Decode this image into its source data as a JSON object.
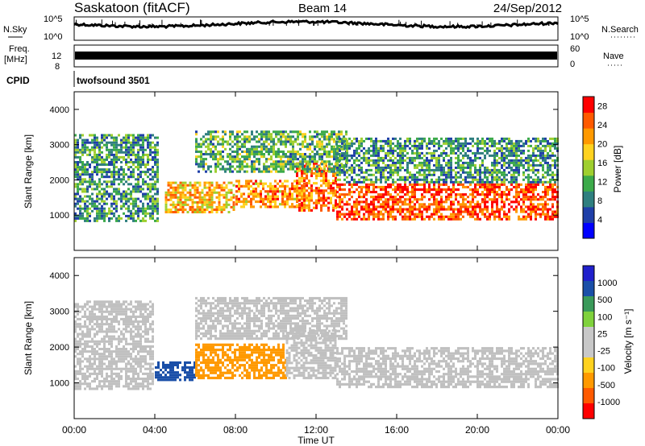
{
  "header": {
    "station": "Saskatoon (fitACF)",
    "beam": "Beam 14",
    "date": "24/Sep/2012"
  },
  "top_panels": {
    "nsky_label": "N.Sky",
    "nsearch_label": "N.Search",
    "nsky_ticks": [
      "10^5",
      "10^0"
    ],
    "nsearch_ticks": [
      "10^5",
      "10^0"
    ],
    "freq_label_1": "Freq.",
    "freq_label_2": "[MHz]",
    "freq_ticks": [
      "12",
      "8"
    ],
    "nave_label": "Nave",
    "nave_ticks": [
      "60",
      "0"
    ],
    "cpid_label": "CPID",
    "cpid_value": "twofsound 3501"
  },
  "colors": {
    "power_scale": [
      "#0000ff",
      "#1f3fa8",
      "#2f7f7f",
      "#3caa4a",
      "#9fcf2f",
      "#ffd21f",
      "#ff9900",
      "#ff5a00",
      "#ff0000"
    ],
    "velocity_scale": [
      "#ff0000",
      "#ff5a00",
      "#ff9900",
      "#ffd21f",
      "#c8c8c8",
      "#c8c8c8",
      "#7fd23c",
      "#3a9a5a",
      "#1a4fa8",
      "#2020cc"
    ],
    "ground_scatter": "#c0c0c0"
  },
  "chart_data": [
    {
      "type": "heatmap",
      "name": "power",
      "ylabel": "Slant Range [km]",
      "xlabel": "",
      "ylim": [
        0,
        4500
      ],
      "yticks": [
        "1000",
        "2000",
        "3000",
        "4000"
      ],
      "colorbar_label": "Power [dB]",
      "colorbar_ticks": [
        "4",
        "8",
        "12",
        "16",
        "20",
        "24",
        "28"
      ],
      "colorbar_range": [
        0,
        30
      ],
      "echo_regions": [
        {
          "t_start": 0.0,
          "t_end": 4.2,
          "r_low": 800,
          "r_high": 3300,
          "power": 10
        },
        {
          "t_start": 4.5,
          "t_end": 8.0,
          "r_low": 1050,
          "r_high": 1950,
          "power": 20
        },
        {
          "t_start": 8.0,
          "t_end": 11.5,
          "r_low": 1200,
          "r_high": 2000,
          "power": 22
        },
        {
          "t_start": 11.0,
          "t_end": 13.0,
          "r_low": 1100,
          "r_high": 2500,
          "power": 24
        },
        {
          "t_start": 13.0,
          "t_end": 24.0,
          "r_low": 850,
          "r_high": 1900,
          "power": 26
        },
        {
          "t_start": 6.0,
          "t_end": 13.5,
          "r_low": 2200,
          "r_high": 3400,
          "power": 12
        },
        {
          "t_start": 13.0,
          "t_end": 24.0,
          "r_low": 1900,
          "r_high": 3200,
          "power": 10
        }
      ]
    },
    {
      "type": "heatmap",
      "name": "velocity",
      "ylabel": "Slant Range [km]",
      "xlabel": "Time UT",
      "ylim": [
        0,
        4500
      ],
      "yticks": [
        "1000",
        "2000",
        "3000",
        "4000"
      ],
      "xticks": [
        "00:00",
        "04:00",
        "08:00",
        "12:00",
        "16:00",
        "20:00",
        "00:00"
      ],
      "colorbar_label": "Velocity [m s⁻¹]",
      "colorbar_ticks": [
        "1000",
        "500",
        "100",
        "25",
        "-25",
        "-100",
        "-500",
        "-1000"
      ],
      "echo_regions": [
        {
          "t_start": 0.0,
          "t_end": 4.0,
          "r_low": 800,
          "r_high": 3300,
          "velocity": 0,
          "ground_scatter": true
        },
        {
          "t_start": 4.0,
          "t_end": 6.0,
          "r_low": 1050,
          "r_high": 1600,
          "velocity": 800,
          "ground_scatter": false
        },
        {
          "t_start": 6.0,
          "t_end": 10.5,
          "r_low": 1100,
          "r_high": 2100,
          "velocity": -300,
          "ground_scatter": false
        },
        {
          "t_start": 10.5,
          "t_end": 13.0,
          "r_low": 1100,
          "r_high": 2500,
          "velocity": 0,
          "ground_scatter": true
        },
        {
          "t_start": 13.0,
          "t_end": 24.0,
          "r_low": 850,
          "r_high": 2000,
          "velocity": 0,
          "ground_scatter": true
        },
        {
          "t_start": 6.0,
          "t_end": 13.5,
          "r_low": 2200,
          "r_high": 3400,
          "velocity": 0,
          "ground_scatter": true
        }
      ]
    }
  ]
}
